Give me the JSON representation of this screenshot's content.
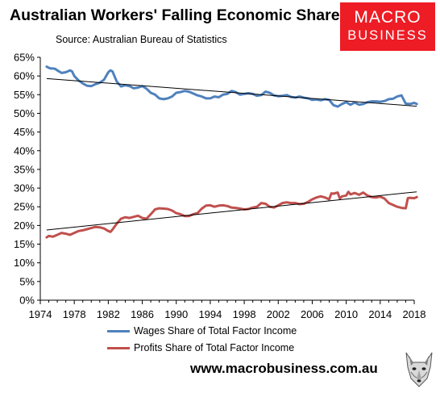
{
  "header": {
    "title": "Australian Workers' Falling Economic Share",
    "source": "Source: Australian Bureau of Statistics"
  },
  "logo": {
    "line1": "MACRO",
    "line2": "BUSINESS",
    "bg_color": "#ee1c25"
  },
  "footer": {
    "website": "www.macrobusiness.com.au"
  },
  "chart_data": {
    "type": "line",
    "title": "Australian Workers' Falling Economic Share",
    "xlabel": "",
    "ylabel": "",
    "xlim": [
      1974,
      2018
    ],
    "ylim": [
      0,
      65
    ],
    "grid": false,
    "legend_position": "bottom",
    "x_ticks": [
      "1974",
      "1978",
      "1982",
      "1986",
      "1990",
      "1994",
      "1998",
      "2002",
      "2006",
      "2010",
      "2014",
      "2018"
    ],
    "y_ticks": [
      "0%",
      "5%",
      "10%",
      "15%",
      "20%",
      "25%",
      "30%",
      "35%",
      "40%",
      "45%",
      "50%",
      "55%",
      "60%",
      "65%"
    ],
    "series": [
      {
        "name": "Wages Share of Total Factor Income",
        "color": "#4f81bd",
        "points": [
          [
            1974.75,
            62.5
          ],
          [
            1975.0,
            62.2
          ],
          [
            1975.25,
            62.0
          ],
          [
            1975.5,
            62.0
          ],
          [
            1975.75,
            61.9
          ],
          [
            1976.0,
            61.5
          ],
          [
            1976.5,
            60.8
          ],
          [
            1977.0,
            61.0
          ],
          [
            1977.5,
            61.5
          ],
          [
            1977.75,
            61.2
          ],
          [
            1978.0,
            60.0
          ],
          [
            1978.5,
            58.8
          ],
          [
            1979.0,
            58.0
          ],
          [
            1979.5,
            57.4
          ],
          [
            1980.0,
            57.3
          ],
          [
            1980.5,
            57.8
          ],
          [
            1981.0,
            58.2
          ],
          [
            1981.5,
            59.0
          ],
          [
            1982.0,
            61.0
          ],
          [
            1982.25,
            61.5
          ],
          [
            1982.5,
            61.2
          ],
          [
            1983.0,
            58.5
          ],
          [
            1983.5,
            57.2
          ],
          [
            1984.0,
            57.5
          ],
          [
            1984.5,
            57.3
          ],
          [
            1985.0,
            56.7
          ],
          [
            1985.5,
            56.9
          ],
          [
            1986.0,
            57.3
          ],
          [
            1986.5,
            56.6
          ],
          [
            1987.0,
            55.5
          ],
          [
            1987.5,
            55.0
          ],
          [
            1988.0,
            54.0
          ],
          [
            1988.5,
            53.8
          ],
          [
            1989.0,
            54.0
          ],
          [
            1989.5,
            54.5
          ],
          [
            1990.0,
            55.5
          ],
          [
            1990.5,
            55.7
          ],
          [
            1991.0,
            56.0
          ],
          [
            1991.5,
            55.8
          ],
          [
            1992.0,
            55.3
          ],
          [
            1992.5,
            54.8
          ],
          [
            1993.0,
            54.5
          ],
          [
            1993.5,
            54.0
          ],
          [
            1994.0,
            54.0
          ],
          [
            1994.5,
            54.5
          ],
          [
            1995.0,
            54.3
          ],
          [
            1995.5,
            55.0
          ],
          [
            1996.0,
            55.2
          ],
          [
            1996.5,
            56.0
          ],
          [
            1997.0,
            55.7
          ],
          [
            1997.5,
            55.0
          ],
          [
            1998.0,
            55.2
          ],
          [
            1998.5,
            55.4
          ],
          [
            1999.0,
            55.2
          ],
          [
            1999.5,
            54.7
          ],
          [
            2000.0,
            54.9
          ],
          [
            2000.5,
            55.8
          ],
          [
            2001.0,
            55.5
          ],
          [
            2001.5,
            54.8
          ],
          [
            2002.0,
            54.6
          ],
          [
            2002.5,
            54.7
          ],
          [
            2003.0,
            54.9
          ],
          [
            2003.5,
            54.4
          ],
          [
            2004.0,
            54.2
          ],
          [
            2004.5,
            54.5
          ],
          [
            2005.0,
            54.2
          ],
          [
            2005.5,
            54.0
          ],
          [
            2006.0,
            53.6
          ],
          [
            2006.5,
            53.7
          ],
          [
            2007.0,
            53.5
          ],
          [
            2007.5,
            53.8
          ],
          [
            2008.0,
            53.6
          ],
          [
            2008.5,
            52.2
          ],
          [
            2009.0,
            51.8
          ],
          [
            2009.5,
            52.5
          ],
          [
            2010.0,
            53.0
          ],
          [
            2010.5,
            52.3
          ],
          [
            2011.0,
            52.9
          ],
          [
            2011.5,
            52.3
          ],
          [
            2012.0,
            52.5
          ],
          [
            2012.5,
            53.0
          ],
          [
            2013.0,
            53.2
          ],
          [
            2013.5,
            53.2
          ],
          [
            2014.0,
            53.1
          ],
          [
            2014.5,
            53.3
          ],
          [
            2015.0,
            53.8
          ],
          [
            2015.5,
            53.9
          ],
          [
            2016.0,
            54.5
          ],
          [
            2016.5,
            54.8
          ],
          [
            2017.0,
            52.6
          ],
          [
            2017.5,
            52.5
          ],
          [
            2018.0,
            52.8
          ],
          [
            2018.3,
            52.5
          ]
        ]
      },
      {
        "name": "Profits Share of Total Factor Income",
        "color": "#c0504d",
        "points": [
          [
            1974.75,
            16.8
          ],
          [
            1975.0,
            17.2
          ],
          [
            1975.5,
            17.0
          ],
          [
            1976.0,
            17.5
          ],
          [
            1976.5,
            18.0
          ],
          [
            1977.0,
            17.8
          ],
          [
            1977.5,
            17.5
          ],
          [
            1978.0,
            18.0
          ],
          [
            1978.5,
            18.5
          ],
          [
            1979.0,
            18.7
          ],
          [
            1979.5,
            19.0
          ],
          [
            1980.0,
            19.3
          ],
          [
            1980.5,
            19.6
          ],
          [
            1981.0,
            19.5
          ],
          [
            1981.5,
            19.2
          ],
          [
            1982.0,
            18.5
          ],
          [
            1982.25,
            18.3
          ],
          [
            1982.5,
            18.9
          ],
          [
            1983.0,
            20.5
          ],
          [
            1983.5,
            21.8
          ],
          [
            1984.0,
            22.2
          ],
          [
            1984.5,
            22.0
          ],
          [
            1985.0,
            22.3
          ],
          [
            1985.5,
            22.6
          ],
          [
            1986.0,
            22.0
          ],
          [
            1986.5,
            21.8
          ],
          [
            1987.0,
            23.0
          ],
          [
            1987.5,
            24.3
          ],
          [
            1988.0,
            24.6
          ],
          [
            1988.5,
            24.5
          ],
          [
            1989.0,
            24.4
          ],
          [
            1989.5,
            24.0
          ],
          [
            1990.0,
            23.3
          ],
          [
            1990.5,
            23.0
          ],
          [
            1991.0,
            22.5
          ],
          [
            1991.5,
            22.5
          ],
          [
            1992.0,
            23.0
          ],
          [
            1992.5,
            23.3
          ],
          [
            1993.0,
            24.5
          ],
          [
            1993.5,
            25.3
          ],
          [
            1994.0,
            25.4
          ],
          [
            1994.5,
            25.0
          ],
          [
            1995.0,
            25.3
          ],
          [
            1995.5,
            25.4
          ],
          [
            1996.0,
            25.2
          ],
          [
            1996.5,
            24.8
          ],
          [
            1997.0,
            24.7
          ],
          [
            1997.5,
            24.5
          ],
          [
            1998.0,
            24.3
          ],
          [
            1998.5,
            24.4
          ],
          [
            1999.0,
            24.8
          ],
          [
            1999.5,
            25.0
          ],
          [
            2000.0,
            26.0
          ],
          [
            2000.5,
            25.8
          ],
          [
            2001.0,
            25.0
          ],
          [
            2001.5,
            24.8
          ],
          [
            2002.0,
            25.4
          ],
          [
            2002.5,
            26.0
          ],
          [
            2003.0,
            26.2
          ],
          [
            2003.5,
            26.0
          ],
          [
            2004.0,
            26.0
          ],
          [
            2004.5,
            25.7
          ],
          [
            2005.0,
            25.8
          ],
          [
            2005.5,
            26.3
          ],
          [
            2006.0,
            27.0
          ],
          [
            2006.5,
            27.5
          ],
          [
            2007.0,
            27.8
          ],
          [
            2007.5,
            27.5
          ],
          [
            2008.0,
            27.0
          ],
          [
            2008.25,
            28.6
          ],
          [
            2008.5,
            28.5
          ],
          [
            2009.0,
            28.8
          ],
          [
            2009.25,
            27.2
          ],
          [
            2009.5,
            27.8
          ],
          [
            2010.0,
            28.0
          ],
          [
            2010.25,
            29.0
          ],
          [
            2010.5,
            28.3
          ],
          [
            2011.0,
            28.7
          ],
          [
            2011.5,
            28.2
          ],
          [
            2012.0,
            28.8
          ],
          [
            2012.5,
            28.0
          ],
          [
            2013.0,
            27.6
          ],
          [
            2013.5,
            27.5
          ],
          [
            2014.0,
            27.7
          ],
          [
            2014.5,
            27.2
          ],
          [
            2015.0,
            26.0
          ],
          [
            2015.5,
            25.5
          ],
          [
            2016.0,
            25.0
          ],
          [
            2016.5,
            24.7
          ],
          [
            2017.0,
            24.6
          ],
          [
            2017.25,
            27.3
          ],
          [
            2017.5,
            27.4
          ],
          [
            2018.0,
            27.3
          ],
          [
            2018.3,
            27.6
          ]
        ]
      }
    ],
    "trendlines": [
      {
        "series": "Wages Share of Total Factor Income",
        "color": "#000000",
        "start": [
          1974.75,
          59.3
        ],
        "end": [
          2018.3,
          51.9
        ]
      },
      {
        "series": "Profits Share of Total Factor Income",
        "color": "#000000",
        "start": [
          1974.75,
          18.8
        ],
        "end": [
          2018.3,
          29.0
        ]
      }
    ]
  }
}
